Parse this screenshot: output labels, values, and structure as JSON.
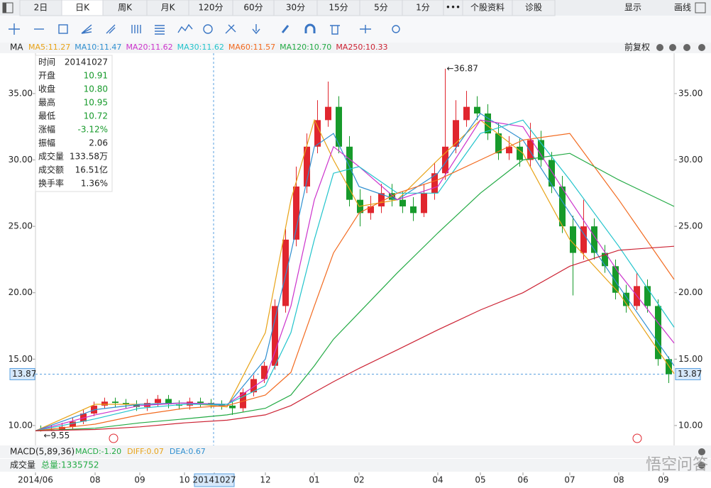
{
  "toolbar": {
    "tabs": [
      "2日",
      "日K",
      "周K",
      "月K",
      "120分",
      "60分",
      "30分",
      "15分",
      "5分",
      "1分",
      "•••",
      "个股资料",
      "诊股"
    ],
    "right": [
      "显示",
      "画线"
    ]
  },
  "ma_bar": {
    "label": "MA",
    "adjust": "前复权"
  },
  "info_panel": {
    "rows": [
      [
        "时间",
        "20141027"
      ],
      [
        "开盘",
        "10.91"
      ],
      [
        "收盘",
        "10.80"
      ],
      [
        "最高",
        "10.95"
      ],
      [
        "最低",
        "10.72"
      ],
      [
        "涨幅",
        "-3.12%"
      ],
      [
        "振幅",
        "2.06"
      ],
      [
        "成交量",
        "133.58万"
      ],
      [
        "成交额",
        "16.51亿"
      ],
      [
        "换手率",
        "1.36%"
      ]
    ]
  },
  "macd_bar": {
    "label": "MACD(5,89,36)",
    "items": [
      "MACD:-1.20",
      "DIFF:0.07",
      "DEA:0.67"
    ]
  },
  "volume_bar": {
    "label": "成交量",
    "total": "总量:1335752"
  },
  "watermark": "悟空问答",
  "chart_data": {
    "type": "candlestick",
    "up_color": "#e0262e",
    "down_color": "#179a2b",
    "max_label": "←36.87",
    "min_label": "←9.55",
    "last_price": 13.87,
    "xlim": [
      0,
      300
    ],
    "xticks": [
      {
        "value": 0,
        "label": "2014/06"
      },
      {
        "value": 28,
        "label": "08"
      },
      {
        "value": 49,
        "label": "09"
      },
      {
        "value": 70,
        "label": "10"
      },
      {
        "value": 84,
        "label": "20141027"
      },
      {
        "value": 108,
        "label": "12"
      },
      {
        "value": 131,
        "label": "01"
      },
      {
        "value": 152,
        "label": "02"
      },
      {
        "value": 189,
        "label": "04"
      },
      {
        "value": 209,
        "label": "05"
      },
      {
        "value": 229,
        "label": "06"
      },
      {
        "value": 251,
        "label": "07"
      },
      {
        "value": 274,
        "label": "08"
      },
      {
        "value": 295,
        "label": "09"
      }
    ],
    "ylim": [
      8.66,
      38.04
    ],
    "yticks": [
      {
        "value": 10,
        "label": "10.00"
      },
      {
        "value": 15,
        "label": "15.00"
      },
      {
        "value": 20,
        "label": "20.00"
      },
      {
        "value": 25,
        "label": "25.00"
      },
      {
        "value": 30,
        "label": "30.00"
      },
      {
        "value": 35,
        "label": "35.00"
      }
    ],
    "x": [
      2.5,
      7.5,
      12.5,
      17.5,
      22.5,
      27.5,
      32.5,
      37.5,
      42.5,
      47.5,
      52.5,
      57.5,
      62.5,
      67.5,
      72.5,
      77.5,
      82.5,
      87.5,
      92.5,
      97.5,
      102.5,
      107.5,
      112.5,
      117.5,
      122.5,
      127.5,
      132.5,
      137.5,
      142.5,
      147.5,
      152.5,
      157.5,
      162.5,
      167.5,
      172.5,
      177.5,
      182.5,
      187.5,
      192.5,
      197.5,
      202.5,
      207.5,
      212.5,
      217.5,
      222.5,
      227.5,
      232.5,
      237.5,
      242.5,
      247.5,
      252.5,
      257.5,
      262.5,
      267.5,
      272.5,
      277.5,
      282.5,
      287.5,
      292.5,
      297.5
    ],
    "open": [
      9.7,
      9.6,
      9.7,
      9.9,
      10.3,
      10.9,
      11.5,
      11.8,
      11.7,
      11.6,
      11.4,
      11.7,
      12.0,
      11.6,
      11.5,
      11.8,
      11.7,
      11.6,
      11.5,
      11.3,
      12.5,
      13.5,
      14.5,
      19,
      24,
      28,
      31,
      33,
      34,
      31,
      27,
      26,
      26.5,
      27.5,
      27,
      26.5,
      26,
      27.5,
      29,
      31,
      33,
      34,
      33.5,
      32,
      30.5,
      31,
      30,
      31.5,
      30,
      28,
      25,
      23,
      25,
      23,
      22,
      20,
      19,
      20.5,
      19,
      15
    ],
    "high": [
      10.0,
      10.0,
      10.2,
      10.6,
      11.2,
      11.8,
      12.1,
      12.1,
      12.0,
      11.9,
      12.0,
      12.3,
      12.3,
      11.9,
      12.1,
      12.1,
      12.0,
      11.9,
      11.8,
      12.8,
      13.8,
      14.8,
      19.5,
      24.8,
      29.5,
      32,
      34.5,
      35.9,
      34.8,
      31.8,
      27.8,
      27.3,
      28.2,
      28.2,
      27.6,
      27.2,
      28.2,
      29.8,
      36.87,
      34.5,
      35.2,
      34.8,
      34.2,
      32.8,
      31.8,
      31.6,
      32.8,
      32.2,
      30.6,
      28.8,
      25.8,
      27,
      25.6,
      23.6,
      22.5,
      20.6,
      21.5,
      21,
      19.5,
      15.2
    ],
    "low": [
      9.55,
      9.58,
      9.6,
      9.7,
      10.1,
      10.7,
      11.3,
      11.4,
      11.3,
      11.1,
      11.1,
      11.4,
      11.3,
      11.2,
      11.2,
      11.4,
      11.3,
      11.2,
      10.8,
      11.0,
      12.2,
      13.2,
      14.2,
      18.5,
      23.5,
      27.5,
      30.5,
      32.5,
      30.5,
      26.5,
      25,
      25.5,
      26,
      26.5,
      26,
      25.4,
      25.7,
      27,
      28.5,
      30.5,
      32.5,
      33,
      31.5,
      30,
      30,
      29.5,
      29.5,
      29.5,
      27.5,
      24.5,
      19.8,
      22.5,
      22.5,
      21.5,
      19.5,
      18.5,
      18.7,
      18.5,
      14.5,
      13.2
    ],
    "close": [
      9.6,
      9.7,
      9.9,
      10.3,
      10.9,
      11.5,
      11.8,
      11.7,
      11.6,
      11.4,
      11.7,
      12.0,
      11.6,
      11.5,
      11.8,
      11.7,
      11.6,
      11.5,
      11.3,
      12.5,
      13.5,
      14.5,
      19,
      24,
      28,
      31,
      33,
      34,
      31,
      27,
      26,
      26.5,
      27.5,
      27,
      26.5,
      26,
      27.5,
      29,
      31,
      33,
      34,
      33.5,
      32,
      30.5,
      31,
      30,
      31.5,
      30,
      28,
      25,
      23,
      25,
      23,
      22,
      20,
      19,
      20.5,
      19,
      15,
      13.87
    ],
    "series": [
      {
        "name": "MA5:11.27",
        "color": "#e8a317",
        "x": [
          0,
          28,
          49,
          70,
          90,
          108,
          120,
          131,
          140,
          152,
          170,
          189,
          209,
          229,
          251,
          274,
          300
        ],
        "values": [
          9.6,
          11.6,
          11.6,
          11.7,
          11.4,
          17,
          27,
          33,
          30,
          26.5,
          27,
          30,
          33,
          30.5,
          24,
          20,
          13.9
        ]
      },
      {
        "name": "MA10:11.47",
        "color": "#2f8fd0",
        "x": [
          0,
          28,
          49,
          70,
          90,
          108,
          120,
          131,
          140,
          152,
          170,
          189,
          209,
          229,
          251,
          274,
          300
        ],
        "values": [
          9.6,
          11.2,
          11.6,
          11.7,
          11.5,
          15,
          23,
          31,
          32,
          28,
          27,
          29,
          33.5,
          31.5,
          26,
          20.5,
          14.5
        ]
      },
      {
        "name": "MA20:11.62",
        "color": "#cc33cc",
        "x": [
          0,
          28,
          49,
          70,
          90,
          108,
          120,
          131,
          140,
          152,
          170,
          189,
          209,
          229,
          251,
          274,
          300
        ],
        "values": [
          9.6,
          10.8,
          11.5,
          11.7,
          11.6,
          13.5,
          19,
          27,
          31,
          29.5,
          27,
          28,
          33,
          32.5,
          27,
          21.5,
          16.2
        ]
      },
      {
        "name": "MA30:11.62",
        "color": "#22c4cc",
        "x": [
          0,
          28,
          49,
          70,
          90,
          108,
          120,
          131,
          140,
          152,
          170,
          189,
          209,
          229,
          251,
          274,
          300
        ],
        "values": [
          9.6,
          10.5,
          11.3,
          11.6,
          11.6,
          13,
          17,
          24,
          29,
          29.5,
          27.5,
          27.5,
          32,
          33,
          28.5,
          23.5,
          17.4
        ]
      },
      {
        "name": "MA60:11.57",
        "color": "#f26a1f",
        "x": [
          0,
          28,
          49,
          70,
          90,
          108,
          120,
          131,
          140,
          152,
          170,
          189,
          209,
          229,
          251,
          274,
          300
        ],
        "values": [
          9.6,
          10.1,
          10.8,
          11.3,
          11.5,
          12.3,
          14,
          19,
          23,
          26,
          27.5,
          28.5,
          30,
          31.5,
          32,
          27,
          21
        ]
      },
      {
        "name": "MA120:10.70",
        "color": "#22aa44",
        "x": [
          0,
          28,
          49,
          70,
          90,
          108,
          120,
          131,
          140,
          152,
          170,
          189,
          209,
          229,
          251,
          274,
          300
        ],
        "values": [
          9.6,
          9.8,
          10.2,
          10.5,
          10.8,
          11.3,
          12.3,
          14.5,
          16.5,
          18.5,
          21.5,
          24.5,
          27.5,
          30,
          30.5,
          28.5,
          26.5
        ]
      },
      {
        "name": "MA250:10.33",
        "color": "#cc2233",
        "x": [
          0,
          28,
          49,
          70,
          90,
          108,
          120,
          131,
          140,
          152,
          170,
          189,
          209,
          229,
          251,
          274,
          300
        ],
        "values": [
          9.6,
          9.7,
          9.9,
          10.2,
          10.4,
          10.8,
          11.5,
          12.5,
          13.3,
          14.3,
          15.7,
          17.2,
          18.7,
          20,
          22,
          23.2,
          23.5
        ]
      }
    ]
  }
}
